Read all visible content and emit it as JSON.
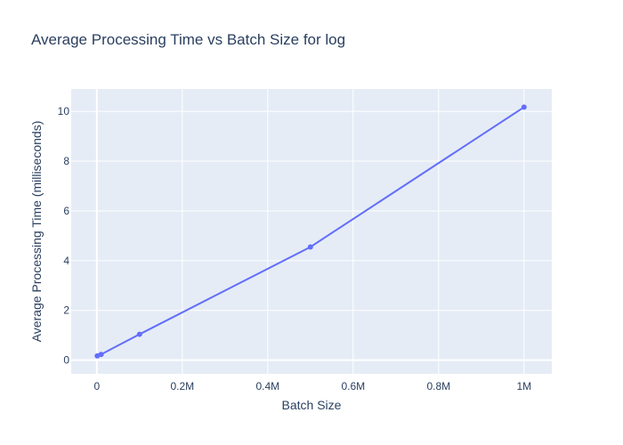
{
  "chart_data": {
    "type": "line",
    "title": "Average Processing Time vs Batch Size for log",
    "xlabel": "Batch Size",
    "ylabel": "Average Processing Time (milliseconds)",
    "x_tick_values": [
      0,
      200000,
      400000,
      600000,
      800000,
      1000000
    ],
    "x_tick_labels": [
      "0",
      "0.2M",
      "0.4M",
      "0.6M",
      "0.8M",
      "1M"
    ],
    "y_tick_values": [
      0,
      2,
      4,
      6,
      8,
      10
    ],
    "y_tick_labels": [
      "0",
      "2",
      "4",
      "6",
      "8",
      "10"
    ],
    "xlim": [
      -60000,
      1065000
    ],
    "ylim": [
      -0.55,
      10.9
    ],
    "grid": true,
    "legend": "none",
    "colors": {
      "line": "#636efa",
      "plot_bg": "#e5ecf6",
      "grid": "#ffffff",
      "text": "#2a3f5f"
    },
    "series": [
      {
        "x": [
          1000,
          10000,
          100000,
          500000,
          1000000
        ],
        "y": [
          0.17,
          0.23,
          1.04,
          4.55,
          10.17
        ]
      }
    ]
  }
}
